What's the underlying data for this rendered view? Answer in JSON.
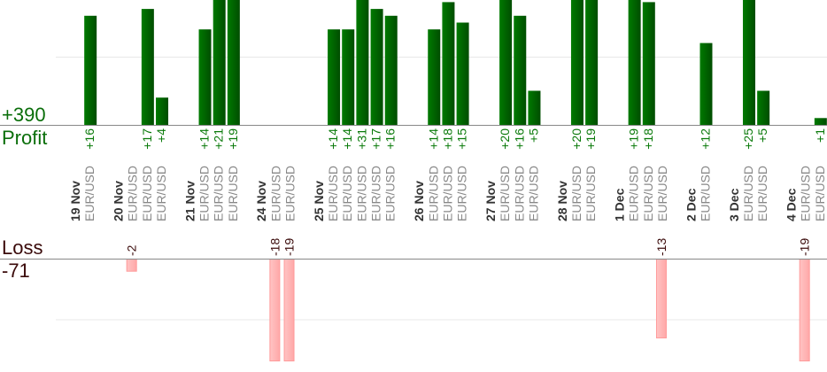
{
  "summary": {
    "profit_total": "+390",
    "profit_label": "Profit",
    "loss_label": "Loss",
    "loss_total": "-71"
  },
  "colors": {
    "profit_bar": "#006400",
    "profit_text": "#0a7a0a",
    "loss_bar": "#ffb3b3",
    "loss_text": "#3a0a0a",
    "date_text": "#333333",
    "symbol_text": "#888888"
  },
  "chart_data": {
    "type": "bar",
    "profit_gridline": 10,
    "loss_gridline": -10,
    "days": [
      {
        "date": "19 Nov",
        "trades": [
          {
            "symbol": "EUR/USD",
            "value": 16,
            "label": "+16"
          }
        ]
      },
      {
        "date": "20 Nov",
        "trades": [
          {
            "symbol": "EUR/USD",
            "value": -2,
            "label": "-2"
          },
          {
            "symbol": "EUR/USD",
            "value": 17,
            "label": "+17"
          },
          {
            "symbol": "EUR/USD",
            "value": 4,
            "label": "+4"
          }
        ]
      },
      {
        "date": "21 Nov",
        "trades": [
          {
            "symbol": "EUR/USD",
            "value": 14,
            "label": "+14"
          },
          {
            "symbol": "EUR/USD",
            "value": 21,
            "label": "+21"
          },
          {
            "symbol": "EUR/USD",
            "value": 19,
            "label": "+19"
          }
        ]
      },
      {
        "date": "24 Nov",
        "trades": [
          {
            "symbol": "EUR/USD",
            "value": -18,
            "label": "-18"
          },
          {
            "symbol": "EUR/USD",
            "value": -19,
            "label": "-19"
          }
        ]
      },
      {
        "date": "25 Nov",
        "trades": [
          {
            "symbol": "EUR/USD",
            "value": 14,
            "label": "+14"
          },
          {
            "symbol": "EUR/USD",
            "value": 14,
            "label": "+14"
          },
          {
            "symbol": "EUR/USD",
            "value": 31,
            "label": "+31"
          },
          {
            "symbol": "EUR/USD",
            "value": 17,
            "label": "+17"
          },
          {
            "symbol": "EUR/USD",
            "value": 16,
            "label": "+16"
          }
        ]
      },
      {
        "date": "26 Nov",
        "trades": [
          {
            "symbol": "EUR/USD",
            "value": 14,
            "label": "+14"
          },
          {
            "symbol": "EUR/USD",
            "value": 18,
            "label": "+18"
          },
          {
            "symbol": "EUR/USD",
            "value": 15,
            "label": "+15"
          }
        ]
      },
      {
        "date": "27 Nov",
        "trades": [
          {
            "symbol": "EUR/USD",
            "value": 20,
            "label": "+20"
          },
          {
            "symbol": "EUR/USD",
            "value": 16,
            "label": "+16"
          },
          {
            "symbol": "EUR/USD",
            "value": 5,
            "label": "+5"
          }
        ]
      },
      {
        "date": "28 Nov",
        "trades": [
          {
            "symbol": "EUR/USD",
            "value": 20,
            "label": "+20"
          },
          {
            "symbol": "EUR/USD",
            "value": 19,
            "label": "+19"
          }
        ]
      },
      {
        "date": "1 Dec",
        "trades": [
          {
            "symbol": "EUR/USD",
            "value": 19,
            "label": "+19"
          },
          {
            "symbol": "EUR/USD",
            "value": 18,
            "label": "+18"
          },
          {
            "symbol": "EUR/USD",
            "value": -13,
            "label": "-13"
          }
        ]
      },
      {
        "date": "2 Dec",
        "trades": [
          {
            "symbol": "EUR/USD",
            "value": 12,
            "label": "+12"
          }
        ]
      },
      {
        "date": "3 Dec",
        "trades": [
          {
            "symbol": "EUR/USD",
            "value": 25,
            "label": "+25"
          },
          {
            "symbol": "EUR/USD",
            "value": 5,
            "label": "+5"
          }
        ]
      },
      {
        "date": "4 Dec",
        "trades": [
          {
            "symbol": "EUR/USD",
            "value": -19,
            "label": "-19"
          },
          {
            "symbol": "EUR/USD",
            "value": 1,
            "label": "+1"
          }
        ]
      }
    ]
  }
}
